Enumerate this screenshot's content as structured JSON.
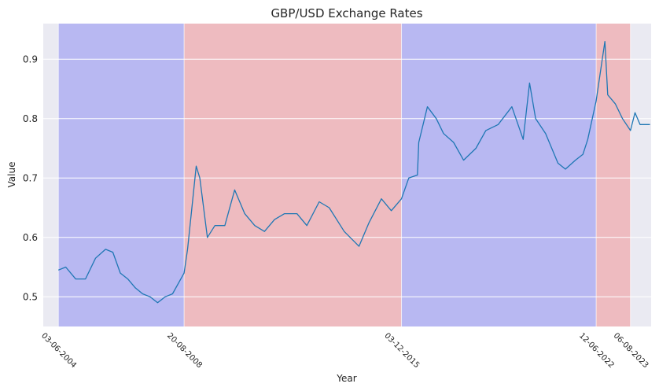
{
  "chart_data": {
    "type": "line",
    "title": "GBP/USD Exchange Rates",
    "xlabel": "Year",
    "ylabel": "Value",
    "ylim": [
      0.45,
      0.96
    ],
    "yticks": [
      0.5,
      0.6,
      0.7,
      0.8,
      0.9
    ],
    "xlim": [
      "2003-12-01",
      "2024-04-15"
    ],
    "xticks": [
      "03-06-2004",
      "20-08-2008",
      "03-12-2015",
      "12-06-2022",
      "06-08-2023"
    ],
    "grid": true,
    "background": "#eaeaf2",
    "line_color": "#1f77b4",
    "regions": [
      {
        "start": "03-06-2004",
        "end": "20-08-2008",
        "color": "#b8b8f2"
      },
      {
        "start": "20-08-2008",
        "end": "03-12-2015",
        "color": "#eebbc0"
      },
      {
        "start": "03-12-2015",
        "end": "12-06-2022",
        "color": "#b8b8f2"
      },
      {
        "start": "12-06-2022",
        "end": "06-08-2023",
        "color": "#eebbc0"
      }
    ],
    "series": [
      {
        "x": [
          "2004-06-03",
          "2004-09-01",
          "2005-01-01",
          "2005-05-01",
          "2005-09-01",
          "2006-01-01",
          "2006-04-01",
          "2006-07-01",
          "2006-10-01",
          "2007-01-01",
          "2007-04-01",
          "2007-07-01",
          "2007-10-01",
          "2008-01-01",
          "2008-04-01",
          "2008-08-20",
          "2008-10-01",
          "2008-12-01",
          "2009-01-15",
          "2009-03-01",
          "2009-06-01",
          "2009-09-01",
          "2010-01-01",
          "2010-05-01",
          "2010-09-01",
          "2011-01-01",
          "2011-05-01",
          "2011-09-01",
          "2012-01-01",
          "2012-06-01",
          "2012-10-01",
          "2013-03-01",
          "2013-07-01",
          "2014-01-01",
          "2014-07-01",
          "2014-11-01",
          "2015-04-01",
          "2015-08-01",
          "2015-12-03",
          "2016-03-01",
          "2016-06-15",
          "2016-07-01",
          "2016-10-15",
          "2017-02-01",
          "2017-05-01",
          "2017-09-01",
          "2018-01-01",
          "2018-06-01",
          "2018-10-01",
          "2019-03-01",
          "2019-08-15",
          "2020-01-01",
          "2020-03-19",
          "2020-06-01",
          "2020-10-01",
          "2021-03-01",
          "2021-06-01",
          "2021-10-01",
          "2022-01-01",
          "2022-03-01",
          "2022-06-12",
          "2022-09-27",
          "2022-11-01",
          "2023-02-01",
          "2023-05-01",
          "2023-08-06",
          "2023-10-01",
          "2023-12-01",
          "2024-02-01",
          "2024-04-01"
        ],
        "y": [
          0.545,
          0.55,
          0.53,
          0.53,
          0.565,
          0.58,
          0.575,
          0.54,
          0.53,
          0.515,
          0.505,
          0.5,
          0.49,
          0.5,
          0.505,
          0.54,
          0.58,
          0.66,
          0.72,
          0.7,
          0.6,
          0.62,
          0.62,
          0.68,
          0.64,
          0.62,
          0.61,
          0.63,
          0.64,
          0.64,
          0.62,
          0.66,
          0.65,
          0.61,
          0.585,
          0.625,
          0.665,
          0.645,
          0.665,
          0.7,
          0.705,
          0.76,
          0.82,
          0.8,
          0.775,
          0.76,
          0.73,
          0.75,
          0.78,
          0.79,
          0.82,
          0.765,
          0.86,
          0.8,
          0.775,
          0.725,
          0.715,
          0.73,
          0.74,
          0.765,
          0.83,
          0.93,
          0.84,
          0.825,
          0.8,
          0.78,
          0.81,
          0.79,
          0.79,
          0.79
        ]
      }
    ]
  }
}
